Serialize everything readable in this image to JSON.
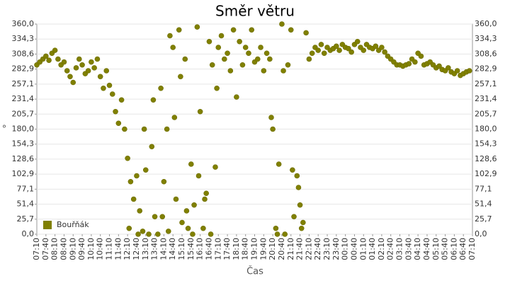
{
  "chart_data": {
    "type": "scatter",
    "title": "Směr větru",
    "x_label": "Čas",
    "y_label": "°",
    "color": "#808000",
    "grid": true,
    "legend": "lower left",
    "ylim": [
      0,
      360
    ],
    "yticks": [
      {
        "value": 0,
        "label": "0,0"
      },
      {
        "value": 25.7,
        "label": "25,7"
      },
      {
        "value": 51.4,
        "label": "51,4"
      },
      {
        "value": 77.1,
        "label": "77,1"
      },
      {
        "value": 102.9,
        "label": "102,9"
      },
      {
        "value": 128.6,
        "label": "128,6"
      },
      {
        "value": 154.3,
        "label": "154,3"
      },
      {
        "value": 180,
        "label": "180,0"
      },
      {
        "value": 205.7,
        "label": "205,7"
      },
      {
        "value": 231.4,
        "label": "231,4"
      },
      {
        "value": 257.1,
        "label": "257,1"
      },
      {
        "value": 282.9,
        "label": "282,9"
      },
      {
        "value": 308.6,
        "label": "308,6"
      },
      {
        "value": 334.3,
        "label": "334,3"
      },
      {
        "value": 360,
        "label": "360,0"
      }
    ],
    "xticks": [
      "07:10",
      "07:40",
      "08:10",
      "08:40",
      "09:10",
      "09:40",
      "10:10",
      "10:40",
      "11:10",
      "11:40",
      "12:10",
      "12:40",
      "13:10",
      "13:40",
      "14:10",
      "14:40",
      "15:10",
      "15:40",
      "16:10",
      "16:40",
      "17:10",
      "17:40",
      "18:10",
      "18:40",
      "19:10",
      "19:40",
      "20:10",
      "20:40",
      "21:10",
      "21:40",
      "22:10",
      "22:40",
      "23:10",
      "23:40",
      "00:10",
      "00:40",
      "01:10",
      "01:40",
      "02:10",
      "02:40",
      "03:10",
      "03:40",
      "04:10",
      "04:40",
      "05:10",
      "05:40",
      "06:10",
      "06:40",
      "07:10"
    ],
    "series": [
      {
        "name": "Bouřňák",
        "color": "#808000",
        "x": [
          "07:10",
          "07:20",
          "07:30",
          "07:40",
          "07:50",
          "08:00",
          "08:10",
          "08:20",
          "08:30",
          "08:40",
          "08:50",
          "09:00",
          "09:10",
          "09:20",
          "09:30",
          "09:40",
          "09:50",
          "10:00",
          "10:10",
          "10:20",
          "10:30",
          "10:40",
          "10:50",
          "11:00",
          "11:10",
          "11:20",
          "11:30",
          "11:40",
          "11:50",
          "12:00",
          "12:10",
          "12:20",
          "12:30",
          "12:40",
          "12:50",
          "13:00",
          "13:10",
          "13:20",
          "13:30",
          "13:40",
          "13:50",
          "14:00",
          "14:10",
          "14:20",
          "14:30",
          "14:40",
          "14:50",
          "15:00",
          "15:10",
          "15:20",
          "15:30",
          "15:40",
          "15:50",
          "16:00",
          "16:10",
          "16:20",
          "16:30",
          "16:40",
          "16:50",
          "17:00",
          "17:10",
          "17:20",
          "17:30",
          "17:40",
          "17:50",
          "18:00",
          "18:10",
          "18:20",
          "18:30",
          "18:40",
          "18:50",
          "19:00",
          "19:10",
          "19:20",
          "19:30",
          "19:40",
          "19:50",
          "20:00",
          "20:10",
          "20:20",
          "20:30",
          "20:40",
          "20:50",
          "21:00",
          "21:10",
          "21:20",
          "21:30",
          "21:40",
          "21:50",
          "22:00",
          "22:10",
          "22:20",
          "22:30",
          "22:40",
          "22:50",
          "23:00",
          "23:10",
          "23:20",
          "23:30",
          "23:40",
          "23:50",
          "00:00",
          "00:10",
          "00:20",
          "00:30",
          "00:40",
          "00:50",
          "01:00",
          "01:10",
          "01:20",
          "01:30",
          "01:40",
          "01:50",
          "02:00",
          "02:10",
          "02:20",
          "02:30",
          "02:40",
          "02:50",
          "03:00",
          "03:10",
          "03:20",
          "03:30",
          "03:40",
          "03:50",
          "04:00",
          "04:10",
          "04:20",
          "04:30",
          "04:40",
          "04:50",
          "05:00",
          "05:10",
          "05:20",
          "05:30",
          "05:40",
          "05:50",
          "06:00",
          "06:10",
          "06:20",
          "06:30",
          "06:40",
          "06:50",
          "07:00",
          "12:15",
          "12:45",
          "13:05",
          "13:35",
          "14:05",
          "14:25",
          "14:45",
          "15:05",
          "15:25",
          "15:45",
          "16:05",
          "16:25",
          "16:45",
          "17:05",
          "20:05",
          "20:25",
          "20:45",
          "21:15",
          "21:35",
          "21:45"
        ],
        "values": [
          290,
          295,
          300,
          305,
          298,
          310,
          315,
          300,
          290,
          295,
          280,
          270,
          260,
          285,
          300,
          290,
          275,
          280,
          295,
          285,
          300,
          270,
          250,
          280,
          255,
          240,
          210,
          190,
          230,
          180,
          130,
          90,
          60,
          100,
          40,
          5,
          110,
          0,
          150,
          30,
          0,
          250,
          90,
          180,
          340,
          320,
          60,
          350,
          20,
          300,
          10,
          120,
          50,
          355,
          210,
          10,
          70,
          330,
          290,
          115,
          320,
          340,
          300,
          310,
          280,
          350,
          235,
          330,
          290,
          320,
          310,
          350,
          295,
          300,
          320,
          280,
          310,
          300,
          180,
          10,
          120,
          360,
          0,
          290,
          350,
          30,
          100,
          50,
          20,
          345,
          300,
          310,
          320,
          315,
          325,
          310,
          320,
          315,
          318,
          322,
          315,
          325,
          320,
          318,
          312,
          325,
          330,
          320,
          315,
          325,
          320,
          318,
          322,
          315,
          320,
          312,
          305,
          300,
          295,
          290,
          290,
          288,
          290,
          292,
          300,
          295,
          310,
          305,
          290,
          292,
          295,
          290,
          285,
          288,
          282,
          280,
          285,
          278,
          275,
          280,
          272,
          275,
          278,
          280,
          10,
          0,
          180,
          230,
          30,
          5,
          200,
          270,
          40,
          0,
          100,
          60,
          0,
          250,
          200,
          0,
          280,
          110,
          80,
          10
        ]
      }
    ]
  }
}
